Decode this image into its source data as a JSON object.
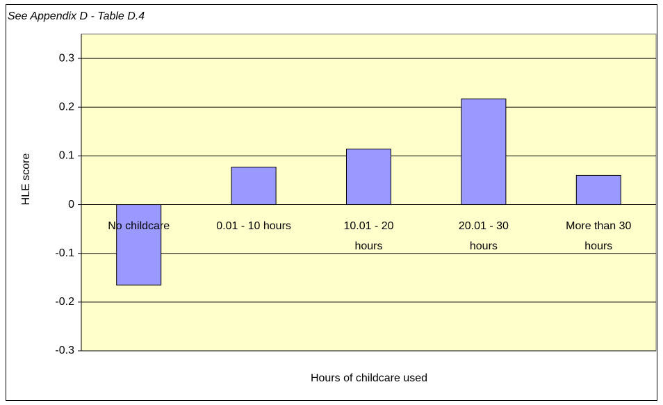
{
  "chart_data": {
    "type": "bar",
    "note": "See Appendix D - Table D.4",
    "x_label": "Hours of childcare used",
    "y_label": "HLE score",
    "categories": [
      "No childcare",
      "0.01 - 10 hours",
      "10.01 - 20 hours",
      "20.01 - 30 hours",
      "More than 30 hours"
    ],
    "values": [
      -0.165,
      0.077,
      0.114,
      0.217,
      0.06
    ],
    "color": "#9999ff",
    "ylim": [
      -0.3,
      0.35
    ],
    "yticks": [
      -0.3,
      -0.2,
      -0.1,
      0,
      0.1,
      0.2,
      0.3
    ],
    "grid": true
  }
}
